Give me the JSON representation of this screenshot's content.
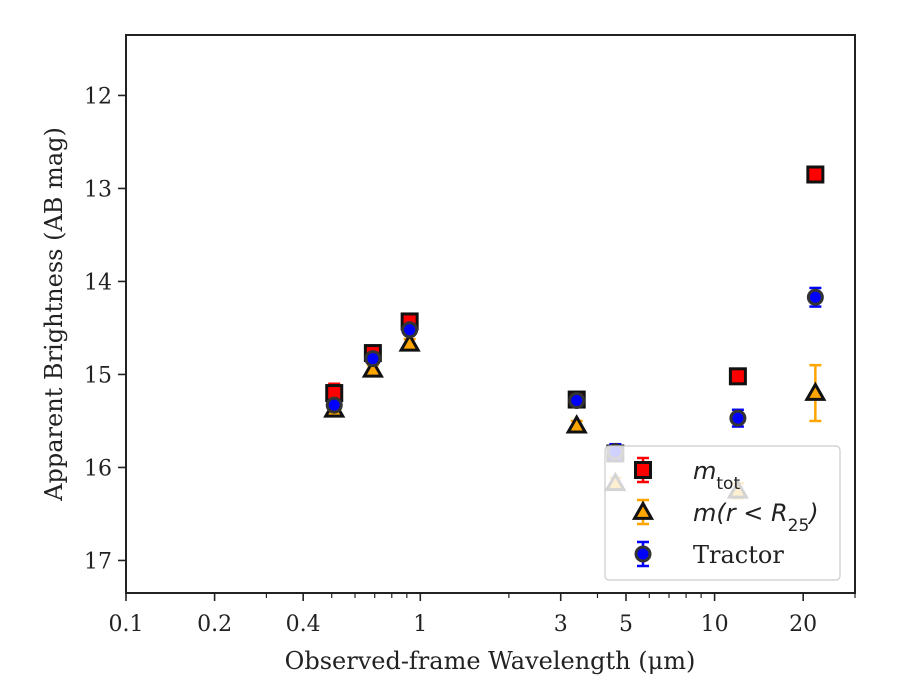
{
  "chart_data": {
    "type": "scatter",
    "title": "",
    "xlabel": "Observed-frame Wavelength (μm)",
    "ylabel": "Apparent Brightness (AB mag)",
    "xscale": "log",
    "xlim": [
      0.1,
      30
    ],
    "ylim": [
      17.35,
      11.35
    ],
    "y_inverted": true,
    "x_ticks": [
      {
        "value": 0.1,
        "label": "0.1"
      },
      {
        "value": 0.2,
        "label": "0.2"
      },
      {
        "value": 0.4,
        "label": "0.4"
      },
      {
        "value": 1,
        "label": "1"
      },
      {
        "value": 3,
        "label": "3"
      },
      {
        "value": 5,
        "label": "5"
      },
      {
        "value": 10,
        "label": "10"
      },
      {
        "value": 20,
        "label": "20"
      }
    ],
    "y_ticks": [
      {
        "value": 12,
        "label": "12"
      },
      {
        "value": 13,
        "label": "13"
      },
      {
        "value": 14,
        "label": "14"
      },
      {
        "value": 15,
        "label": "15"
      },
      {
        "value": 16,
        "label": "16"
      },
      {
        "value": 17,
        "label": "17"
      }
    ],
    "grid": false,
    "legend_position": "bottom-right",
    "series": [
      {
        "name": "m_tot",
        "label_base": "m",
        "label_sub": "tot",
        "marker": "square",
        "face_color": "#ff0000",
        "edge_color": "#111111",
        "err_color": "#ff0000",
        "points": [
          {
            "x": 0.51,
            "y": 15.2,
            "err": 0.1
          },
          {
            "x": 0.69,
            "y": 14.77,
            "err": 0.06
          },
          {
            "x": 0.92,
            "y": 14.43,
            "err": 0.05
          },
          {
            "x": 3.4,
            "y": 15.27,
            "err": 0.05
          },
          {
            "x": 4.6,
            "y": 15.85,
            "err": 0.06
          },
          {
            "x": 12.0,
            "y": 15.02,
            "err": 0.05
          },
          {
            "x": 22.0,
            "y": 12.85,
            "err": 0.08
          }
        ]
      },
      {
        "name": "m(r < R25)",
        "label_base": "m(r < R",
        "label_sub": "25",
        "label_tail": ")",
        "marker": "triangle",
        "face_color": "#ffa500",
        "edge_color": "#111111",
        "err_color": "#ffa500",
        "points": [
          {
            "x": 0.51,
            "y": 15.38,
            "err": 0.05
          },
          {
            "x": 0.69,
            "y": 14.95,
            "err": 0.05
          },
          {
            "x": 0.92,
            "y": 14.67,
            "err": 0.05
          },
          {
            "x": 3.4,
            "y": 15.55,
            "err": 0.05
          },
          {
            "x": 4.6,
            "y": 16.17,
            "err": 0.06
          },
          {
            "x": 12.0,
            "y": 16.25,
            "err": 0.08
          },
          {
            "x": 22.0,
            "y": 15.2,
            "err": 0.3
          }
        ]
      },
      {
        "name": "Tractor",
        "marker": "circle",
        "face_color": "#0000ff",
        "edge_color": "#333333",
        "err_color": "#0000ff",
        "points": [
          {
            "x": 0.51,
            "y": 15.33,
            "err": 0.04
          },
          {
            "x": 0.69,
            "y": 14.83,
            "err": 0.04
          },
          {
            "x": 0.92,
            "y": 14.52,
            "err": 0.05
          },
          {
            "x": 3.4,
            "y": 15.28,
            "err": 0.05
          },
          {
            "x": 4.6,
            "y": 15.83,
            "err": 0.08
          },
          {
            "x": 12.0,
            "y": 15.47,
            "err": 0.09
          },
          {
            "x": 22.0,
            "y": 14.17,
            "err": 0.1
          }
        ]
      }
    ]
  }
}
